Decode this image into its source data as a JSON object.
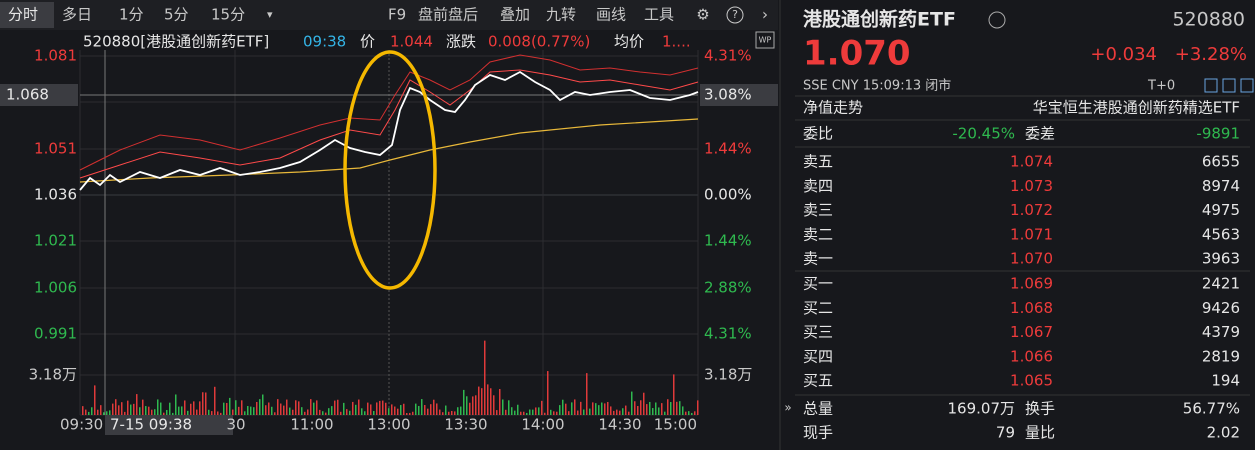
{
  "toolbar": {
    "tabs": [
      "分时",
      "多日",
      "1分",
      "5分",
      "15分"
    ],
    "dropdown": "▾",
    "tools": [
      "F9",
      "盘前盘后",
      "叠加",
      "九转",
      "画线",
      "工具"
    ]
  },
  "chart": {
    "code_name": "520880[港股通创新药ETF]",
    "time": "09:38",
    "price_label": "价",
    "price": "1.044",
    "change_label": "涨跌",
    "change": "0.008(0.77%)",
    "avg_label": "均价",
    "avg": "1....",
    "left_axis": [
      "1.081",
      "1.051",
      "1.036",
      "1.021",
      "1.006",
      "0.991",
      "3.18万"
    ],
    "right_axis": [
      "4.31%",
      "1.44%",
      "0.00%",
      "1.44%",
      "2.88%",
      "4.31%",
      "3.18万"
    ],
    "cross_price": "1.068",
    "cross_pct": "3.08%",
    "x_labels": [
      "09:30",
      "30",
      "11:00",
      "13:00",
      "13:30",
      "14:00",
      "14:30",
      "15:00"
    ],
    "cross_time": "7-15 09:38",
    "wp": "WP"
  },
  "quote": {
    "name": "港股通创新药ETF",
    "code": "520880",
    "price": "1.070",
    "change": "+0.034",
    "pct": "+3.28%",
    "info": "SSE  CNY  15:09:13  闭市",
    "t0": "T+0",
    "nav": "净值走势",
    "fund": "华宝恒生港股通创新药精选ETF",
    "ratio_label": "委比",
    "ratio": "-20.45%",
    "diff_label": "委差",
    "diff": "-9891",
    "sell": [
      {
        "label": "卖五",
        "price": "1.074",
        "volume": "6655"
      },
      {
        "label": "卖四",
        "price": "1.073",
        "volume": "8974"
      },
      {
        "label": "卖三",
        "price": "1.072",
        "volume": "4975"
      },
      {
        "label": "卖二",
        "price": "1.071",
        "volume": "4563"
      },
      {
        "label": "卖一",
        "price": "1.070",
        "volume": "3963"
      }
    ],
    "buy": [
      {
        "label": "买一",
        "price": "1.069",
        "volume": "2421"
      },
      {
        "label": "买二",
        "price": "1.068",
        "volume": "9426"
      },
      {
        "label": "买三",
        "price": "1.067",
        "volume": "4379"
      },
      {
        "label": "买四",
        "price": "1.066",
        "volume": "2819"
      },
      {
        "label": "买五",
        "price": "1.065",
        "volume": "194"
      }
    ],
    "stats": [
      {
        "label": "总量",
        "value": "169.07万",
        "label2": "换手",
        "value2": "56.77%"
      },
      {
        "label": "现手",
        "value": "79",
        "label2": "量比",
        "value2": "2.02"
      }
    ]
  }
}
